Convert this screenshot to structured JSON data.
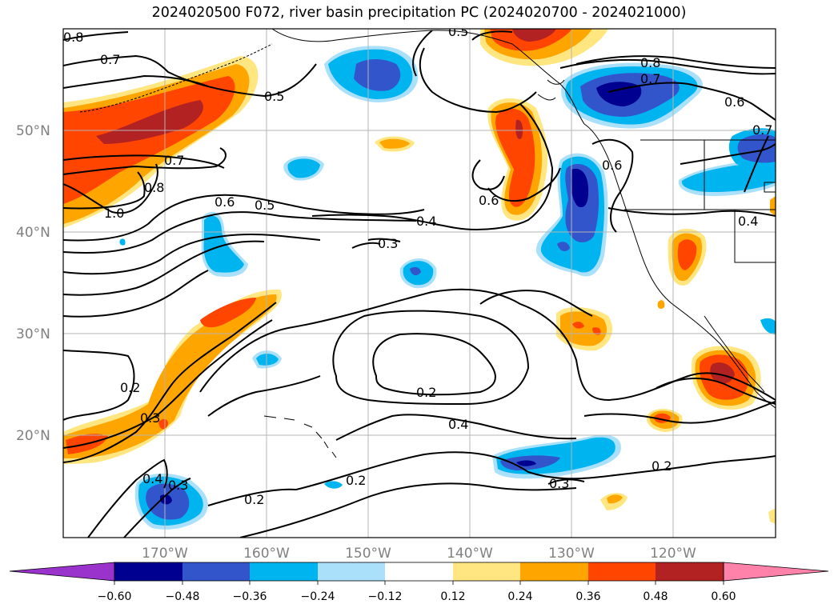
{
  "title": "2024020500 F072, river basin precipitation PC (2024020700 - 2024021000)",
  "map": {
    "lat_labels": [
      "50°N",
      "40°N",
      "30°N",
      "20°N"
    ],
    "lon_labels": [
      "170°W",
      "160°W",
      "150°W",
      "140°W",
      "130°W",
      "120°W"
    ],
    "contour_labels": [
      "0.8",
      "0.7",
      "0.5",
      "0.5",
      "0.8",
      "0.7",
      "0.6",
      "0.7",
      "0.7",
      "0.6",
      "0.8",
      "1.0",
      "0.6",
      "0.5",
      "0.4",
      "0.6",
      "0.3",
      "0.4",
      "0.2",
      "0.3",
      "0.2",
      "0.4",
      "0.2",
      "0.3",
      "0.4",
      "0.3",
      "0.2",
      "0.2"
    ]
  },
  "colorbar": {
    "ticks": [
      "−0.60",
      "−0.48",
      "−0.36",
      "−0.24",
      "−0.12",
      "0.12",
      "0.24",
      "0.36",
      "0.48",
      "0.60"
    ],
    "colors": {
      "under": "#9933cc",
      "n060": "#000090",
      "n048": "#3355cc",
      "n036": "#00b4f0",
      "n024": "#aae0fa",
      "zero": "#ffffff",
      "p012": "#ffe680",
      "p024": "#ffa500",
      "p036": "#ff4500",
      "p048": "#b22222",
      "over": "#ff82aa"
    }
  }
}
